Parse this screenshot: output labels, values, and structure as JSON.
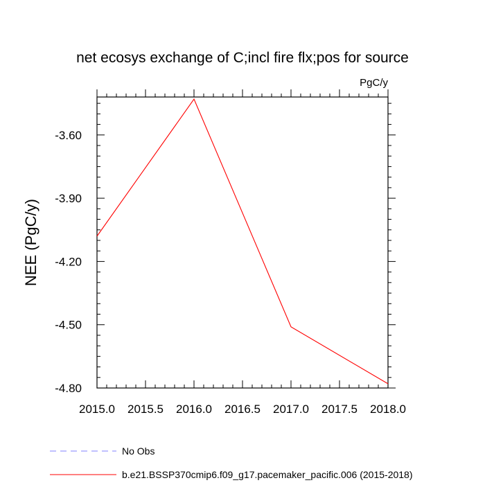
{
  "chart_data": {
    "type": "line",
    "title": "net ecosys exchange of C;incl fire flx;pos for source",
    "units_label": "PgC/y",
    "ylabel": "NEE  (PgC/y)",
    "xlabel": "",
    "xlim": [
      2015.0,
      2018.0
    ],
    "ylim": [
      -4.8,
      -3.42
    ],
    "xticks": [
      2015.0,
      2015.5,
      2016.0,
      2016.5,
      2017.0,
      2017.5,
      2018.0
    ],
    "xtick_labels": [
      "2015.0",
      "2015.5",
      "2016.0",
      "2016.5",
      "2017.0",
      "2017.5",
      "2018.0"
    ],
    "xtick_minor": [
      2015.1,
      2015.2,
      2015.3,
      2015.4,
      2015.6,
      2015.7,
      2015.8,
      2015.9,
      2016.1,
      2016.2,
      2016.3,
      2016.4,
      2016.6,
      2016.7,
      2016.8,
      2016.9,
      2017.1,
      2017.2,
      2017.3,
      2017.4,
      2017.6,
      2017.7,
      2017.8,
      2017.9
    ],
    "yticks": [
      -3.6,
      -3.9,
      -4.2,
      -4.5,
      -4.8
    ],
    "ytick_labels": [
      "-3.60",
      "-3.90",
      "-4.20",
      "-4.50",
      "-4.80"
    ],
    "ytick_minor": [
      -3.45,
      -3.5,
      -3.55,
      -3.65,
      -3.7,
      -3.75,
      -3.8,
      -3.85,
      -3.95,
      -4.0,
      -4.05,
      -4.1,
      -4.15,
      -4.25,
      -4.3,
      -4.35,
      -4.4,
      -4.45,
      -4.55,
      -4.6,
      -4.65,
      -4.7,
      -4.75
    ],
    "grid": false,
    "legend_position": "bottom",
    "series": [
      {
        "name": "No Obs",
        "color": "#8080ff",
        "dash": "dashed",
        "x": [],
        "y": []
      },
      {
        "name": "b.e21.BSSP370cmip6.f09_g17.pacemaker_pacific.006 (2015-2018)",
        "color": "#ff0000",
        "dash": "solid",
        "x": [
          2015.0,
          2016.0,
          2017.0,
          2018.0
        ],
        "y": [
          -4.08,
          -3.43,
          -4.51,
          -4.78
        ]
      }
    ]
  }
}
